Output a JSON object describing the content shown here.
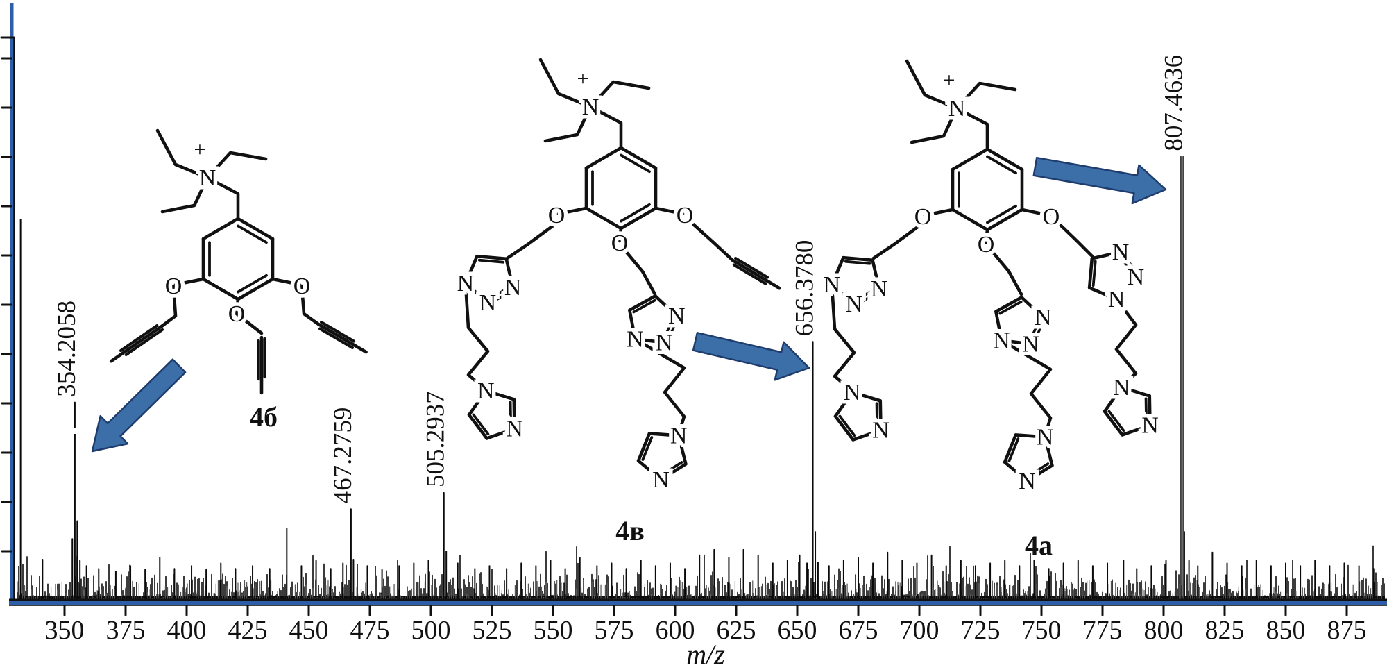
{
  "figure": {
    "title": "ESI mass spectrum with assigned structures",
    "colors": {
      "background": "#ffffff",
      "axis_blue": "#2E5EA8",
      "arrow_fill": "#3C6EA8",
      "arrow_stroke": "#1E3C6E",
      "ink": "#111111",
      "noise_grey": "#555555"
    }
  },
  "chart_data": {
    "type": "bar",
    "subtype": "mass-spectrum",
    "title": "",
    "xlabel": "m/z",
    "ylabel": "",
    "x_range": [
      328,
      891
    ],
    "x_ticks": [
      350,
      375,
      400,
      425,
      450,
      475,
      500,
      525,
      550,
      575,
      600,
      625,
      650,
      675,
      700,
      725,
      750,
      775,
      800,
      825,
      850,
      875
    ],
    "y_axis": {
      "tick_count": 11,
      "labels_shown": false
    },
    "grid": false,
    "legend": false,
    "labeled_peaks": [
      {
        "mz": 354.2058,
        "label": "354.2058",
        "relative_intensity": 0.367
      },
      {
        "mz": 467.2759,
        "label": "467.2759",
        "relative_intensity": 0.17
      },
      {
        "mz": 505.2937,
        "label": "505.2937",
        "relative_intensity": 0.2
      },
      {
        "mz": 656.378,
        "label": "656.3780",
        "relative_intensity": 0.479
      },
      {
        "mz": 807.4636,
        "label": "807.4636",
        "relative_intensity": 0.821
      }
    ],
    "unlabeled_peaks": [
      {
        "mz": 332.0,
        "relative_intensity": 0.705
      },
      {
        "mz": 341.0,
        "relative_intensity": 0.077
      },
      {
        "mz": 353.2,
        "relative_intensity": 0.115
      },
      {
        "mz": 355.2,
        "relative_intensity": 0.148
      },
      {
        "mz": 356.3,
        "relative_intensity": 0.075
      },
      {
        "mz": 359.0,
        "relative_intensity": 0.065
      },
      {
        "mz": 364.0,
        "relative_intensity": 0.06
      },
      {
        "mz": 371.0,
        "relative_intensity": 0.055
      },
      {
        "mz": 377.0,
        "relative_intensity": 0.065
      },
      {
        "mz": 383.0,
        "relative_intensity": 0.058
      },
      {
        "mz": 389.0,
        "relative_intensity": 0.08
      },
      {
        "mz": 395.0,
        "relative_intensity": 0.06
      },
      {
        "mz": 402.0,
        "relative_intensity": 0.065
      },
      {
        "mz": 408.0,
        "relative_intensity": 0.058
      },
      {
        "mz": 414.0,
        "relative_intensity": 0.07
      },
      {
        "mz": 420.0,
        "relative_intensity": 0.06
      },
      {
        "mz": 427.0,
        "relative_intensity": 0.065
      },
      {
        "mz": 434.0,
        "relative_intensity": 0.06
      },
      {
        "mz": 441.0,
        "relative_intensity": 0.135
      },
      {
        "mz": 447.0,
        "relative_intensity": 0.065
      },
      {
        "mz": 453.0,
        "relative_intensity": 0.075
      },
      {
        "mz": 459.0,
        "relative_intensity": 0.06
      },
      {
        "mz": 464.0,
        "relative_intensity": 0.07
      },
      {
        "mz": 468.3,
        "relative_intensity": 0.077
      },
      {
        "mz": 474.0,
        "relative_intensity": 0.065
      },
      {
        "mz": 480.0,
        "relative_intensity": 0.058
      },
      {
        "mz": 487.0,
        "relative_intensity": 0.065
      },
      {
        "mz": 493.0,
        "relative_intensity": 0.07
      },
      {
        "mz": 499.0,
        "relative_intensity": 0.075
      },
      {
        "mz": 506.3,
        "relative_intensity": 0.092
      },
      {
        "mz": 511.0,
        "relative_intensity": 0.07
      },
      {
        "mz": 518.0,
        "relative_intensity": 0.06
      },
      {
        "mz": 524.0,
        "relative_intensity": 0.065
      },
      {
        "mz": 531.0,
        "relative_intensity": 0.06
      },
      {
        "mz": 537.0,
        "relative_intensity": 0.07
      },
      {
        "mz": 543.0,
        "relative_intensity": 0.065
      },
      {
        "mz": 549.0,
        "relative_intensity": 0.075
      },
      {
        "mz": 555.0,
        "relative_intensity": 0.06
      },
      {
        "mz": 561.0,
        "relative_intensity": 0.08
      },
      {
        "mz": 568.0,
        "relative_intensity": 0.065
      },
      {
        "mz": 574.0,
        "relative_intensity": 0.07
      },
      {
        "mz": 580.0,
        "relative_intensity": 0.06
      },
      {
        "mz": 586.0,
        "relative_intensity": 0.075
      },
      {
        "mz": 592.0,
        "relative_intensity": 0.065
      },
      {
        "mz": 598.0,
        "relative_intensity": 0.07
      },
      {
        "mz": 604.0,
        "relative_intensity": 0.06
      },
      {
        "mz": 610.0,
        "relative_intensity": 0.085
      },
      {
        "mz": 616.0,
        "relative_intensity": 0.095
      },
      {
        "mz": 622.0,
        "relative_intensity": 0.08
      },
      {
        "mz": 628.0,
        "relative_intensity": 0.095
      },
      {
        "mz": 634.0,
        "relative_intensity": 0.085
      },
      {
        "mz": 640.0,
        "relative_intensity": 0.07
      },
      {
        "mz": 646.0,
        "relative_intensity": 0.075
      },
      {
        "mz": 651.0,
        "relative_intensity": 0.085
      },
      {
        "mz": 654.0,
        "relative_intensity": 0.07
      },
      {
        "mz": 657.4,
        "relative_intensity": 0.128
      },
      {
        "mz": 658.5,
        "relative_intensity": 0.072
      },
      {
        "mz": 663.0,
        "relative_intensity": 0.065
      },
      {
        "mz": 669.0,
        "relative_intensity": 0.075
      },
      {
        "mz": 675.0,
        "relative_intensity": 0.08
      },
      {
        "mz": 681.0,
        "relative_intensity": 0.07
      },
      {
        "mz": 687.0,
        "relative_intensity": 0.09
      },
      {
        "mz": 693.0,
        "relative_intensity": 0.075
      },
      {
        "mz": 699.0,
        "relative_intensity": 0.07
      },
      {
        "mz": 705.0,
        "relative_intensity": 0.085
      },
      {
        "mz": 711.0,
        "relative_intensity": 0.065
      },
      {
        "mz": 717.0,
        "relative_intensity": 0.075
      },
      {
        "mz": 723.0,
        "relative_intensity": 0.065
      },
      {
        "mz": 729.0,
        "relative_intensity": 0.07
      },
      {
        "mz": 735.0,
        "relative_intensity": 0.075
      },
      {
        "mz": 741.0,
        "relative_intensity": 0.065
      },
      {
        "mz": 747.0,
        "relative_intensity": 0.075
      },
      {
        "mz": 753.0,
        "relative_intensity": 0.06
      },
      {
        "mz": 759.0,
        "relative_intensity": 0.07
      },
      {
        "mz": 765.0,
        "relative_intensity": 0.075
      },
      {
        "mz": 771.0,
        "relative_intensity": 0.065
      },
      {
        "mz": 777.0,
        "relative_intensity": 0.07
      },
      {
        "mz": 783.6,
        "relative_intensity": 0.075
      },
      {
        "mz": 789.0,
        "relative_intensity": 0.06
      },
      {
        "mz": 795.0,
        "relative_intensity": 0.065
      },
      {
        "mz": 801.0,
        "relative_intensity": 0.075
      },
      {
        "mz": 808.5,
        "relative_intensity": 0.128
      },
      {
        "mz": 810.4,
        "relative_intensity": 0.075
      },
      {
        "mz": 814.0,
        "relative_intensity": 0.065
      },
      {
        "mz": 820.0,
        "relative_intensity": 0.09
      },
      {
        "mz": 826.0,
        "relative_intensity": 0.07
      },
      {
        "mz": 832.0,
        "relative_intensity": 0.065
      },
      {
        "mz": 838.0,
        "relative_intensity": 0.075
      },
      {
        "mz": 844.0,
        "relative_intensity": 0.065
      },
      {
        "mz": 850.0,
        "relative_intensity": 0.07
      },
      {
        "mz": 856.0,
        "relative_intensity": 0.065
      },
      {
        "mz": 862.0,
        "relative_intensity": 0.075
      },
      {
        "mz": 868.0,
        "relative_intensity": 0.065
      },
      {
        "mz": 874.0,
        "relative_intensity": 0.07
      },
      {
        "mz": 880.0,
        "relative_intensity": 0.065
      },
      {
        "mz": 886.0,
        "relative_intensity": 0.06
      }
    ],
    "noise": {
      "description": "dense random baseline noise across full m/z range",
      "max_relative_intensity": 0.055
    }
  },
  "annotations": {
    "atom_glyphs": {
      "N": "N",
      "O": "O",
      "plus": "+"
    },
    "structures": [
      {
        "id": "4b",
        "label": "4б",
        "points_to_mz": 354.2058,
        "description": "N,N,N-triethyl benzylammonium cation with three O-propargyl ether arms"
      },
      {
        "id": "4v",
        "label": "4в",
        "points_to_mz": 656.378,
        "description": "N,N,N-triethyl benzylammonium cation with two triazolylmethoxy-propyl-imidazole arms and one O-propargyl arm"
      },
      {
        "id": "4a",
        "label": "4а",
        "points_to_mz": 807.4636,
        "description": "N,N,N-triethyl benzylammonium cation with three triazolylmethoxy-propyl-imidazole arms"
      }
    ],
    "arrows": [
      {
        "points_to_mz": 354.2058,
        "direction": "down-left"
      },
      {
        "points_to_mz": 656.378,
        "direction": "right"
      },
      {
        "points_to_mz": 807.4636,
        "direction": "right"
      }
    ]
  }
}
